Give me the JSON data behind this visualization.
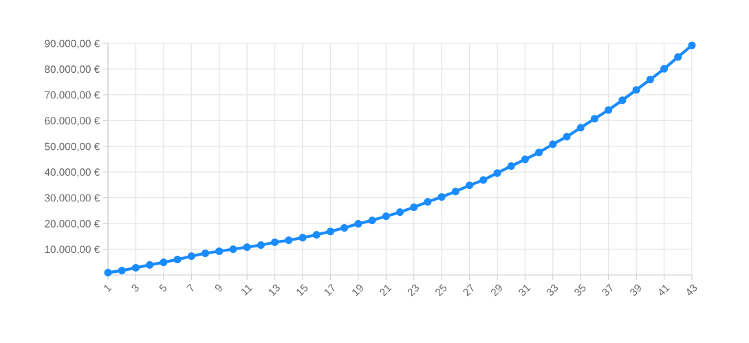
{
  "chart_data": {
    "type": "line",
    "x": [
      1,
      2,
      3,
      4,
      5,
      6,
      7,
      8,
      9,
      10,
      11,
      12,
      13,
      14,
      15,
      16,
      17,
      18,
      19,
      20,
      21,
      22,
      23,
      24,
      25,
      26,
      27,
      28,
      29,
      30,
      31,
      32,
      33,
      34,
      35,
      36,
      37,
      38,
      39,
      40,
      41,
      42,
      43
    ],
    "series": [
      {
        "color": "#1a8cff",
        "values": [
          900,
          1700,
          2800,
          3900,
          4900,
          6000,
          7300,
          8400,
          9200,
          10000,
          10800,
          11600,
          12700,
          13500,
          14500,
          15600,
          16900,
          18300,
          19900,
          21200,
          22800,
          24400,
          26300,
          28400,
          30300,
          32400,
          34800,
          36900,
          39600,
          42300,
          44900,
          47600,
          50800,
          53700,
          57200,
          60700,
          64100,
          67900,
          71900,
          75900,
          80100,
          84700,
          89200
        ]
      }
    ],
    "xlim": [
      1,
      43
    ],
    "xticks": [
      1,
      3,
      5,
      7,
      9,
      11,
      13,
      15,
      17,
      19,
      21,
      23,
      25,
      27,
      29,
      31,
      33,
      35,
      37,
      39,
      41,
      43
    ],
    "ylim": [
      0,
      90000
    ],
    "yticks": [
      {
        "value": 10000,
        "label": "10.000,00 €"
      },
      {
        "value": 20000,
        "label": "20.000,00 €"
      },
      {
        "value": 30000,
        "label": "30.000,00 €"
      },
      {
        "value": 40000,
        "label": "40.000,00 €"
      },
      {
        "value": 50000,
        "label": "50.000,00 €"
      },
      {
        "value": 60000,
        "label": "60.000,00 €"
      },
      {
        "value": 70000,
        "label": "70.000,00 €"
      },
      {
        "value": 80000,
        "label": "80.000,00 €"
      },
      {
        "value": 90000,
        "label": "90.000,00 €"
      }
    ],
    "grid": true,
    "marker": "circle",
    "line_style": "solid"
  }
}
